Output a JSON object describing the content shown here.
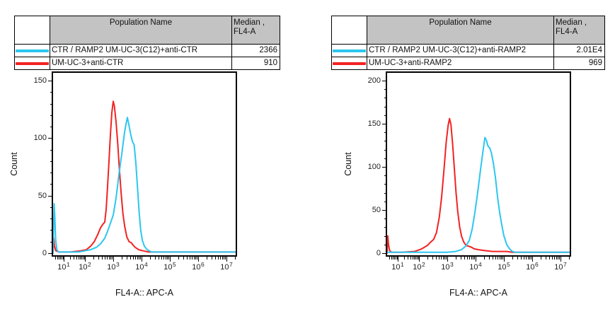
{
  "colors": {
    "cyan": "#2cc6f0",
    "red": "#f32222",
    "table_header_bg": "#c3c3c3",
    "axis": "#000000"
  },
  "panels": [
    {
      "table": {
        "population_header": "Population Name",
        "median_header_line1": "Median ,",
        "median_header_line2": "FL4-A",
        "rows": [
          {
            "swatch_color": "#2cc6f0",
            "population": "CTR / RAMP2 UM-UC-3(C12)+anti-CTR",
            "median": "2366"
          },
          {
            "swatch_color": "#f32222",
            "population": "UM-UC-3+anti-CTR",
            "median": "910"
          }
        ]
      }
    },
    {
      "table": {
        "population_header": "Population Name",
        "median_header_line1": "Median ,",
        "median_header_line2": "FL4-A",
        "rows": [
          {
            "swatch_color": "#2cc6f0",
            "population": "CTR / RAMP2 UM-UC-3(C12)+anti-RAMP2",
            "median": "2.01E4"
          },
          {
            "swatch_color": "#f32222",
            "population": "UM-UC-3+anti-RAMP2",
            "median": "969"
          }
        ]
      }
    }
  ],
  "chart_data": [
    {
      "type": "line",
      "title": "",
      "xlabel": "FL4-A:: APC-A",
      "ylabel": "Count",
      "x_scale": "log10",
      "x_tick_base": "10",
      "x_tick_exponents": [
        1,
        2,
        3,
        4,
        5,
        6,
        7
      ],
      "x_range_log10": [
        0.5,
        7.33
      ],
      "ylim": [
        0,
        150
      ],
      "y_ticks": [
        0,
        50,
        100,
        150
      ],
      "y_minor_step": 10,
      "grid": false,
      "legend": "table-above",
      "series": [
        {
          "name": "CTR / RAMP2 UM-UC-3(C12)+anti-CTR",
          "color": "#2cc6f0",
          "median_fl4a": 2366,
          "points_log10x_count": [
            [
              0.5,
              0
            ],
            [
              0.52,
              18
            ],
            [
              0.55,
              43
            ],
            [
              0.58,
              32
            ],
            [
              0.62,
              12
            ],
            [
              0.68,
              3
            ],
            [
              0.75,
              1
            ],
            [
              1.2,
              1
            ],
            [
              1.7,
              1
            ],
            [
              2.0,
              2
            ],
            [
              2.2,
              3
            ],
            [
              2.4,
              5
            ],
            [
              2.55,
              8
            ],
            [
              2.7,
              13
            ],
            [
              2.8,
              19
            ],
            [
              2.9,
              26
            ],
            [
              3.0,
              33
            ],
            [
              3.1,
              48
            ],
            [
              3.2,
              68
            ],
            [
              3.3,
              86
            ],
            [
              3.4,
              105
            ],
            [
              3.45,
              112
            ],
            [
              3.5,
              118
            ],
            [
              3.55,
              112
            ],
            [
              3.62,
              103
            ],
            [
              3.68,
              97
            ],
            [
              3.74,
              94
            ],
            [
              3.8,
              78
            ],
            [
              3.86,
              56
            ],
            [
              3.92,
              34
            ],
            [
              3.97,
              20
            ],
            [
              4.03,
              11
            ],
            [
              4.1,
              6
            ],
            [
              4.2,
              3
            ],
            [
              4.35,
              1
            ],
            [
              4.6,
              1
            ],
            [
              5.2,
              1
            ],
            [
              6.2,
              1
            ],
            [
              7.33,
              1
            ]
          ]
        },
        {
          "name": "UM-UC-3+anti-CTR",
          "color": "#f32222",
          "median_fl4a": 910,
          "points_log10x_count": [
            [
              0.5,
              0
            ],
            [
              0.53,
              13
            ],
            [
              0.57,
              6
            ],
            [
              0.63,
              2
            ],
            [
              0.8,
              1
            ],
            [
              1.3,
              1
            ],
            [
              1.8,
              2
            ],
            [
              2.05,
              3
            ],
            [
              2.2,
              6
            ],
            [
              2.33,
              10
            ],
            [
              2.45,
              16
            ],
            [
              2.55,
              22
            ],
            [
              2.63,
              25
            ],
            [
              2.7,
              27
            ],
            [
              2.75,
              38
            ],
            [
              2.8,
              58
            ],
            [
              2.85,
              80
            ],
            [
              2.9,
              103
            ],
            [
              2.95,
              122
            ],
            [
              3.0,
              132
            ],
            [
              3.04,
              128
            ],
            [
              3.1,
              114
            ],
            [
              3.16,
              95
            ],
            [
              3.22,
              72
            ],
            [
              3.28,
              52
            ],
            [
              3.34,
              35
            ],
            [
              3.4,
              24
            ],
            [
              3.48,
              14
            ],
            [
              3.56,
              10
            ],
            [
              3.64,
              9
            ],
            [
              3.7,
              7
            ],
            [
              3.78,
              5
            ],
            [
              3.9,
              3
            ],
            [
              4.05,
              2
            ],
            [
              4.25,
              1
            ],
            [
              4.5,
              1
            ],
            [
              5.0,
              1
            ],
            [
              6.0,
              1
            ],
            [
              7.33,
              1
            ]
          ]
        }
      ]
    },
    {
      "type": "line",
      "title": "",
      "xlabel": "FL4-A:: APC-A",
      "ylabel": "Count",
      "x_scale": "log10",
      "x_tick_base": "10",
      "x_tick_exponents": [
        1,
        2,
        3,
        4,
        5,
        6,
        7
      ],
      "x_range_log10": [
        0.5,
        7.33
      ],
      "ylim": [
        0,
        200
      ],
      "y_ticks": [
        0,
        50,
        100,
        150,
        200
      ],
      "y_minor_step": 10,
      "grid": false,
      "legend": "table-above",
      "series": [
        {
          "name": "CTR / RAMP2 UM-UC-3(C12)+anti-RAMP2",
          "color": "#2cc6f0",
          "median_fl4a": 20100,
          "points_log10x_count": [
            [
              0.5,
              1
            ],
            [
              1.5,
              1
            ],
            [
              2.5,
              1
            ],
            [
              3.0,
              1
            ],
            [
              3.3,
              2
            ],
            [
              3.5,
              4
            ],
            [
              3.65,
              8
            ],
            [
              3.78,
              15
            ],
            [
              3.88,
              28
            ],
            [
              3.98,
              48
            ],
            [
              4.08,
              72
            ],
            [
              4.18,
              98
            ],
            [
              4.26,
              118
            ],
            [
              4.33,
              134
            ],
            [
              4.38,
              131
            ],
            [
              4.44,
              124
            ],
            [
              4.5,
              122
            ],
            [
              4.56,
              116
            ],
            [
              4.63,
              104
            ],
            [
              4.7,
              88
            ],
            [
              4.78,
              64
            ],
            [
              4.86,
              45
            ],
            [
              4.93,
              32
            ],
            [
              5.0,
              20
            ],
            [
              5.1,
              10
            ],
            [
              5.2,
              5
            ],
            [
              5.3,
              2
            ],
            [
              5.42,
              1
            ],
            [
              5.6,
              1
            ],
            [
              6.5,
              1
            ],
            [
              7.33,
              1
            ]
          ]
        },
        {
          "name": "UM-UC-3+anti-RAMP2",
          "color": "#f32222",
          "median_fl4a": 969,
          "points_log10x_count": [
            [
              0.5,
              0
            ],
            [
              0.53,
              20
            ],
            [
              0.57,
              9
            ],
            [
              0.62,
              3
            ],
            [
              0.7,
              1
            ],
            [
              1.2,
              1
            ],
            [
              1.8,
              2
            ],
            [
              2.1,
              5
            ],
            [
              2.3,
              9
            ],
            [
              2.42,
              13
            ],
            [
              2.52,
              16
            ],
            [
              2.62,
              24
            ],
            [
              2.72,
              42
            ],
            [
              2.8,
              65
            ],
            [
              2.88,
              95
            ],
            [
              2.96,
              128
            ],
            [
              3.03,
              148
            ],
            [
              3.08,
              156
            ],
            [
              3.13,
              149
            ],
            [
              3.19,
              126
            ],
            [
              3.25,
              98
            ],
            [
              3.31,
              70
            ],
            [
              3.37,
              48
            ],
            [
              3.44,
              30
            ],
            [
              3.51,
              19
            ],
            [
              3.58,
              13
            ],
            [
              3.66,
              9
            ],
            [
              3.75,
              8
            ],
            [
              3.85,
              7
            ],
            [
              3.95,
              5
            ],
            [
              4.1,
              4
            ],
            [
              4.3,
              3
            ],
            [
              4.6,
              2
            ],
            [
              4.9,
              2
            ],
            [
              5.1,
              2
            ],
            [
              5.3,
              1
            ],
            [
              5.6,
              1
            ],
            [
              6.2,
              1
            ],
            [
              7.33,
              1
            ]
          ]
        }
      ]
    }
  ]
}
